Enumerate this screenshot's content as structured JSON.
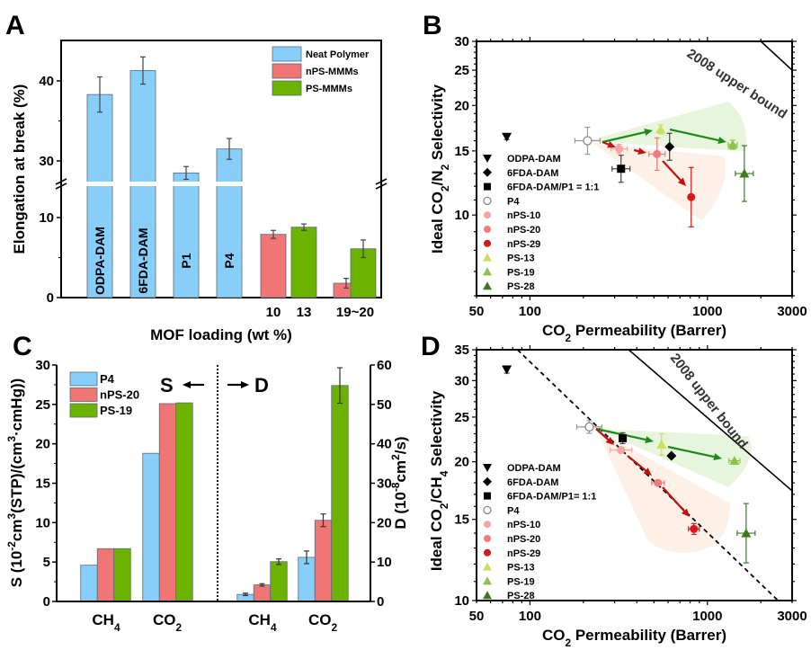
{
  "figure": {
    "panel_letters": [
      "A",
      "B",
      "C",
      "D"
    ]
  },
  "colors": {
    "neat": "#87cefa",
    "nps": "#f07575",
    "ps": "#6bb300",
    "ps13": "#c8e05a",
    "ps19": "#8bc34a",
    "ps28": "#3d7a1a",
    "nps10": "#f7a3a3",
    "nps20": "#f27a7a",
    "nps29": "#d81818",
    "green_arrow": "#1a8a1a",
    "red_arrow": "#c01010",
    "green_fill": "#e6f4d9",
    "red_fill": "#fdeee4"
  },
  "chart_data": [
    {
      "panel": "A",
      "type": "bar",
      "title": "",
      "xlabel": "MOF loading (wt %)",
      "ylabel": "Elongation at break (%)",
      "broken_axis": {
        "lower_range": [
          0,
          15
        ],
        "upper_range": [
          27,
          45
        ]
      },
      "y_ticks_lower": [
        "0",
        "10"
      ],
      "y_ticks_upper": [
        "30",
        "40"
      ],
      "x_tick_labels": [
        "10",
        "13",
        "19~20"
      ],
      "legend": [
        "Neat Polymer",
        "nPS-MMMs",
        "PS-MMMs"
      ],
      "legend_position": "top-right",
      "bars": [
        {
          "label": "ODPA-DAM",
          "group": "Neat Polymer",
          "value": 38.3,
          "error": 2.2
        },
        {
          "label": "6FDA-DAM",
          "group": "Neat Polymer",
          "value": 41.3,
          "error": 1.7
        },
        {
          "label": "P1",
          "group": "Neat Polymer",
          "value": 28.5,
          "error": 0.8
        },
        {
          "label": "P4",
          "group": "Neat Polymer",
          "value": 31.5,
          "error": 1.3
        },
        {
          "label": "10",
          "group": "nPS-MMMs",
          "value": 7.9,
          "error": 0.5
        },
        {
          "label": "13",
          "group": "PS-MMMs",
          "value": 8.8,
          "error": 0.4
        },
        {
          "label": "19~20",
          "group": "nPS-MMMs",
          "value": 1.8,
          "error": 0.6
        },
        {
          "label": "19~20",
          "group": "PS-MMMs",
          "value": 6.1,
          "error": 1.1
        }
      ]
    },
    {
      "panel": "B",
      "type": "scatter",
      "xlabel": "CO2 Permeability (Barrer)",
      "ylabel": "Ideal CO2/N2 Selectivity",
      "xscale": "log",
      "yscale": "log",
      "xlim": [
        50,
        3000
      ],
      "ylim": [
        6,
        30
      ],
      "x_ticks": [
        "50",
        "100",
        "1000",
        "3000"
      ],
      "y_ticks": [
        "10",
        "15",
        "20",
        "25",
        "30"
      ],
      "annotation": "2008 upper bound",
      "upper_bound": [
        [
          2000,
          30
        ],
        [
          3000,
          25
        ]
      ],
      "legend_position": "left",
      "points": [
        {
          "name": "ODPA-DAM",
          "x": 74,
          "y": 16.4,
          "marker": "triangle-down",
          "color": "#000000"
        },
        {
          "name": "6FDA-DAM",
          "x": 612,
          "y": 15.4,
          "marker": "diamond",
          "color": "#000000"
        },
        {
          "name": "6FDA-DAM/P1 = 1:1",
          "x": 326,
          "y": 13.4,
          "marker": "square",
          "color": "#000000"
        },
        {
          "name": "P4",
          "x": 211,
          "y": 16.0,
          "marker": "circle-open",
          "color": "#888888"
        },
        {
          "name": "nPS-10",
          "x": 318,
          "y": 15.2,
          "marker": "circle",
          "color": "#f7a3a3"
        },
        {
          "name": "nPS-20",
          "x": 520,
          "y": 14.7,
          "marker": "circle",
          "color": "#f27a7a"
        },
        {
          "name": "nPS-29",
          "x": 810,
          "y": 11.2,
          "marker": "circle",
          "color": "#d81818"
        },
        {
          "name": "PS-13",
          "x": 545,
          "y": 17.2,
          "marker": "triangle-up",
          "color": "#c8e05a"
        },
        {
          "name": "PS-19",
          "x": 1387,
          "y": 15.6,
          "marker": "triangle-up",
          "color": "#8bc34a"
        },
        {
          "name": "PS-28",
          "x": 1614,
          "y": 13.0,
          "marker": "triangle-up",
          "color": "#3d7a1a"
        }
      ]
    },
    {
      "panel": "C",
      "type": "bar",
      "ylabel_left": "S (10-2cm3(STP)/(cm3·cmHg))",
      "ylabel_right": "D (10-8cm2/s)",
      "ylim_left": [
        0,
        30
      ],
      "ylim_right": [
        0,
        60
      ],
      "y_ticks_left": [
        "0",
        "5",
        "10",
        "15",
        "20",
        "25",
        "30"
      ],
      "y_ticks_right": [
        "0",
        "10",
        "20",
        "30",
        "40",
        "50",
        "60"
      ],
      "annotation_left": "S",
      "annotation_right": "D",
      "legend": [
        "P4",
        "nPS-20",
        "PS-19"
      ],
      "legend_position": "top-left",
      "categories_S": [
        "CH4",
        "CO2"
      ],
      "categories_D": [
        "CH4",
        "CO2"
      ],
      "series_S": [
        {
          "name": "P4",
          "values": [
            4.6,
            18.8
          ]
        },
        {
          "name": "nPS-20",
          "values": [
            6.7,
            25.1
          ]
        },
        {
          "name": "PS-19",
          "values": [
            6.7,
            25.2
          ]
        }
      ],
      "series_D": [
        {
          "name": "P4",
          "values": [
            1.8,
            11.2
          ],
          "errors": [
            0.3,
            1.6
          ]
        },
        {
          "name": "nPS-20",
          "values": [
            4.2,
            20.6
          ],
          "errors": [
            0.3,
            1.6
          ]
        },
        {
          "name": "PS-19",
          "values": [
            10.1,
            54.8
          ],
          "errors": [
            0.7,
            4.5
          ]
        }
      ]
    },
    {
      "panel": "D",
      "type": "scatter",
      "xlabel": "CO2 Permeability (Barrer)",
      "ylabel": "Ideal CO2/CH4 Selectivity",
      "xscale": "log",
      "yscale": "log",
      "xlim": [
        50,
        3000
      ],
      "ylim": [
        10,
        35
      ],
      "x_ticks": [
        "50",
        "100",
        "1000",
        "3000"
      ],
      "y_ticks": [
        "10",
        "15",
        "20",
        "25",
        "30",
        "35"
      ],
      "annotation": "2008 upper bound",
      "upper_bound": [
        [
          360,
          35
        ],
        [
          3000,
          17.3
        ]
      ],
      "dashed_line": [
        [
          85,
          35
        ],
        [
          2500,
          10
        ]
      ],
      "legend_position": "left",
      "points": [
        {
          "name": "ODPA-DAM",
          "x": 74,
          "y": 31.7,
          "marker": "triangle-down",
          "color": "#000000"
        },
        {
          "name": "6FDA-DAM",
          "x": 627,
          "y": 20.6,
          "marker": "diamond",
          "color": "#000000"
        },
        {
          "name": "6FDA-DAM/P1= 1:1",
          "x": 333,
          "y": 22.5,
          "marker": "square",
          "color": "#000000"
        },
        {
          "name": "P4",
          "x": 216,
          "y": 23.8,
          "marker": "circle-open",
          "color": "#888888"
        },
        {
          "name": "nPS-10",
          "x": 326,
          "y": 21.2,
          "marker": "circle",
          "color": "#f7a3a3"
        },
        {
          "name": "nPS-20",
          "x": 526,
          "y": 18.0,
          "marker": "circle",
          "color": "#f27a7a"
        },
        {
          "name": "nPS-29",
          "x": 839,
          "y": 14.3,
          "marker": "circle",
          "color": "#d81818"
        },
        {
          "name": "PS-13",
          "x": 551,
          "y": 21.8,
          "marker": "triangle-up",
          "color": "#c8e05a"
        },
        {
          "name": "PS-19",
          "x": 1419,
          "y": 20.1,
          "marker": "triangle-up",
          "color": "#8bc34a"
        },
        {
          "name": "PS-28",
          "x": 1652,
          "y": 14.0,
          "marker": "triangle-up",
          "color": "#3d7a1a"
        }
      ]
    }
  ]
}
